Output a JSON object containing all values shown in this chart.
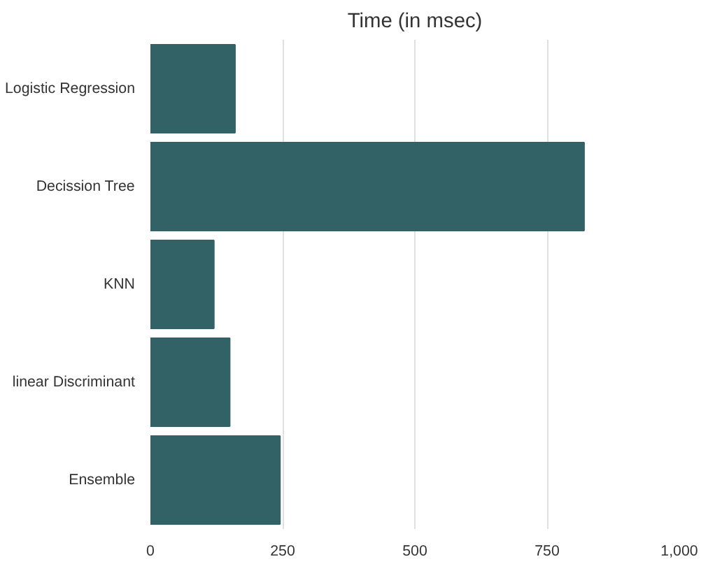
{
  "chart_data": {
    "type": "bar",
    "orientation": "horizontal",
    "title": "Time (in msec)",
    "categories": [
      "Logistic Regression",
      "Decission Tree",
      "KNN",
      "linear Discriminant",
      "Ensemble"
    ],
    "values": [
      160,
      820,
      120,
      150,
      245
    ],
    "color": "#336266",
    "xlim": [
      0,
      1000
    ],
    "xticks": [
      0,
      250,
      500,
      750,
      {
        "value": 1000,
        "label": "1,000"
      }
    ],
    "grid": "x"
  }
}
